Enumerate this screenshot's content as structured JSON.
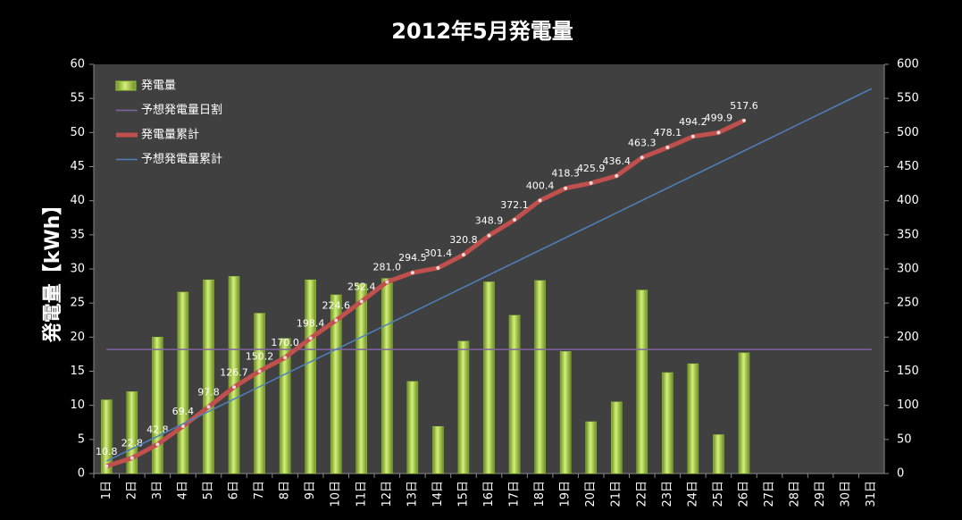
{
  "chart_data": {
    "type": "bar",
    "title": "2012年5月発電量",
    "y_label": "発電量【kWh】",
    "categories": [
      "1日",
      "2日",
      "3日",
      "4日",
      "5日",
      "6日",
      "7日",
      "8日",
      "9日",
      "10日",
      "11日",
      "12日",
      "13日",
      "14日",
      "15日",
      "16日",
      "17日",
      "18日",
      "19日",
      "20日",
      "21日",
      "22日",
      "23日",
      "24日",
      "25日",
      "26日",
      "27日",
      "28日",
      "29日",
      "30日",
      "31日"
    ],
    "series": [
      {
        "name": "発電量",
        "type": "bar",
        "axis": "y",
        "color": "#9acd32",
        "values": [
          10.8,
          12.0,
          20.0,
          26.6,
          28.4,
          28.9,
          23.5,
          19.8,
          28.4,
          26.2,
          27.8,
          28.6,
          13.5,
          6.9,
          19.4,
          28.1,
          23.2,
          28.3,
          17.9,
          7.6,
          10.5,
          26.9,
          14.8,
          16.1,
          5.7,
          17.7,
          null,
          null,
          null,
          null,
          null
        ]
      },
      {
        "name": "予想発電量日割",
        "type": "line",
        "axis": "y",
        "color": "#8064a2",
        "values": [
          18.2,
          18.2,
          18.2,
          18.2,
          18.2,
          18.2,
          18.2,
          18.2,
          18.2,
          18.2,
          18.2,
          18.2,
          18.2,
          18.2,
          18.2,
          18.2,
          18.2,
          18.2,
          18.2,
          18.2,
          18.2,
          18.2,
          18.2,
          18.2,
          18.2,
          18.2,
          18.2,
          18.2,
          18.2,
          18.2,
          18.2
        ]
      },
      {
        "name": "発電量累計",
        "type": "line",
        "axis": "y2",
        "color": "#c0504d",
        "markers": true,
        "values": [
          10.8,
          22.8,
          42.8,
          69.4,
          97.8,
          126.7,
          150.2,
          170.0,
          198.4,
          224.6,
          252.4,
          281.0,
          294.5,
          301.4,
          320.8,
          348.9,
          372.1,
          400.4,
          418.3,
          425.9,
          436.4,
          463.3,
          478.1,
          494.2,
          499.9,
          517.6,
          null,
          null,
          null,
          null,
          null
        ],
        "value_labels": [
          "10.8",
          "22.8",
          "42.8",
          "69.4",
          "97.8",
          "126.7",
          "150.2",
          "170.0",
          "198.4",
          "224.6",
          "252.4",
          "281.0",
          "294.5",
          "301.4",
          "320.8",
          "348.9",
          "372.1",
          "400.4",
          "418.3",
          "425.9",
          "436.4",
          "463.3",
          "478.1",
          "494.2",
          "499.9",
          "517.6",
          null,
          null,
          null,
          null,
          null
        ]
      },
      {
        "name": "予想発電量累計",
        "type": "line",
        "axis": "y2",
        "color": "#4f81bd",
        "values": [
          18.2,
          36.4,
          54.6,
          72.8,
          91.0,
          109.2,
          127.4,
          145.6,
          163.8,
          182.0,
          200.2,
          218.4,
          236.6,
          254.8,
          273.0,
          291.2,
          309.4,
          327.6,
          345.8,
          364.0,
          382.2,
          400.4,
          418.6,
          436.8,
          455.0,
          473.2,
          491.4,
          509.6,
          527.8,
          546.0,
          564.2
        ]
      }
    ],
    "ylim": [
      0,
      60
    ],
    "yticks": [
      0,
      5,
      10,
      15,
      20,
      25,
      30,
      35,
      40,
      45,
      50,
      55,
      60
    ],
    "y2lim": [
      0,
      600
    ],
    "y2ticks": [
      0,
      50,
      100,
      150,
      200,
      250,
      300,
      350,
      400,
      450,
      500,
      550,
      600
    ],
    "grid": false,
    "legend": "upper left"
  }
}
